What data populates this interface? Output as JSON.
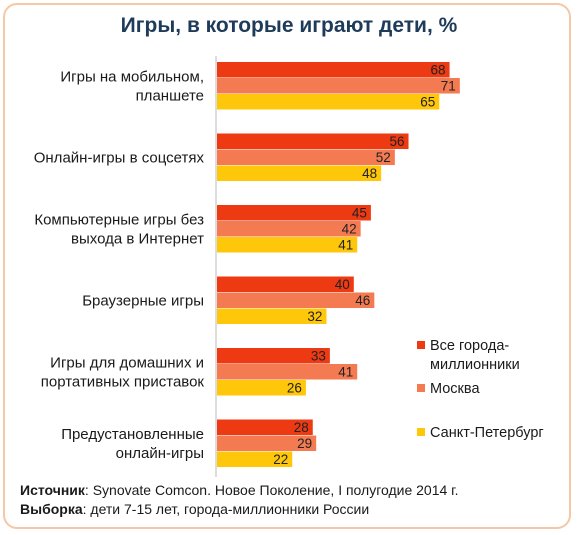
{
  "chart_data": {
    "type": "bar",
    "orientation": "horizontal",
    "title": "Игры, в которые играют дети, %",
    "categories": [
      [
        "Игры на мобильном,",
        "планшете"
      ],
      [
        "Онлайн-игры в соцсетях"
      ],
      [
        "Компьютерные игры без",
        "выхода в Интернет"
      ],
      [
        "Браузерные игры"
      ],
      [
        "Игры для домашних и",
        "портативных приставок"
      ],
      [
        "Предустановленные",
        "онлайн-игры"
      ]
    ],
    "series": [
      {
        "name": "Все города-миллионники",
        "legend_lines": [
          "Все города-",
          "миллионники"
        ],
        "color": "#ee3a12",
        "values": [
          68,
          56,
          45,
          40,
          33,
          28
        ]
      },
      {
        "name": "Москва",
        "legend_lines": [
          "Москва"
        ],
        "color": "#f47a52",
        "values": [
          71,
          52,
          42,
          46,
          41,
          29
        ]
      },
      {
        "name": "Санкт-Петербург",
        "legend_lines": [
          "Санкт-Петербург"
        ],
        "color": "#ffc70a",
        "values": [
          65,
          48,
          41,
          32,
          26,
          22
        ]
      }
    ],
    "xlim": [
      0,
      100
    ],
    "grid": false,
    "legend_position": "right"
  },
  "footer": {
    "source_label": "Источник",
    "source_text": ": Synovate Comcon. Новое Поколение, I полугодие 2014 г.",
    "sample_label": "Выборка",
    "sample_text": ": дети 7-15 лет, города-миллионники России"
  }
}
